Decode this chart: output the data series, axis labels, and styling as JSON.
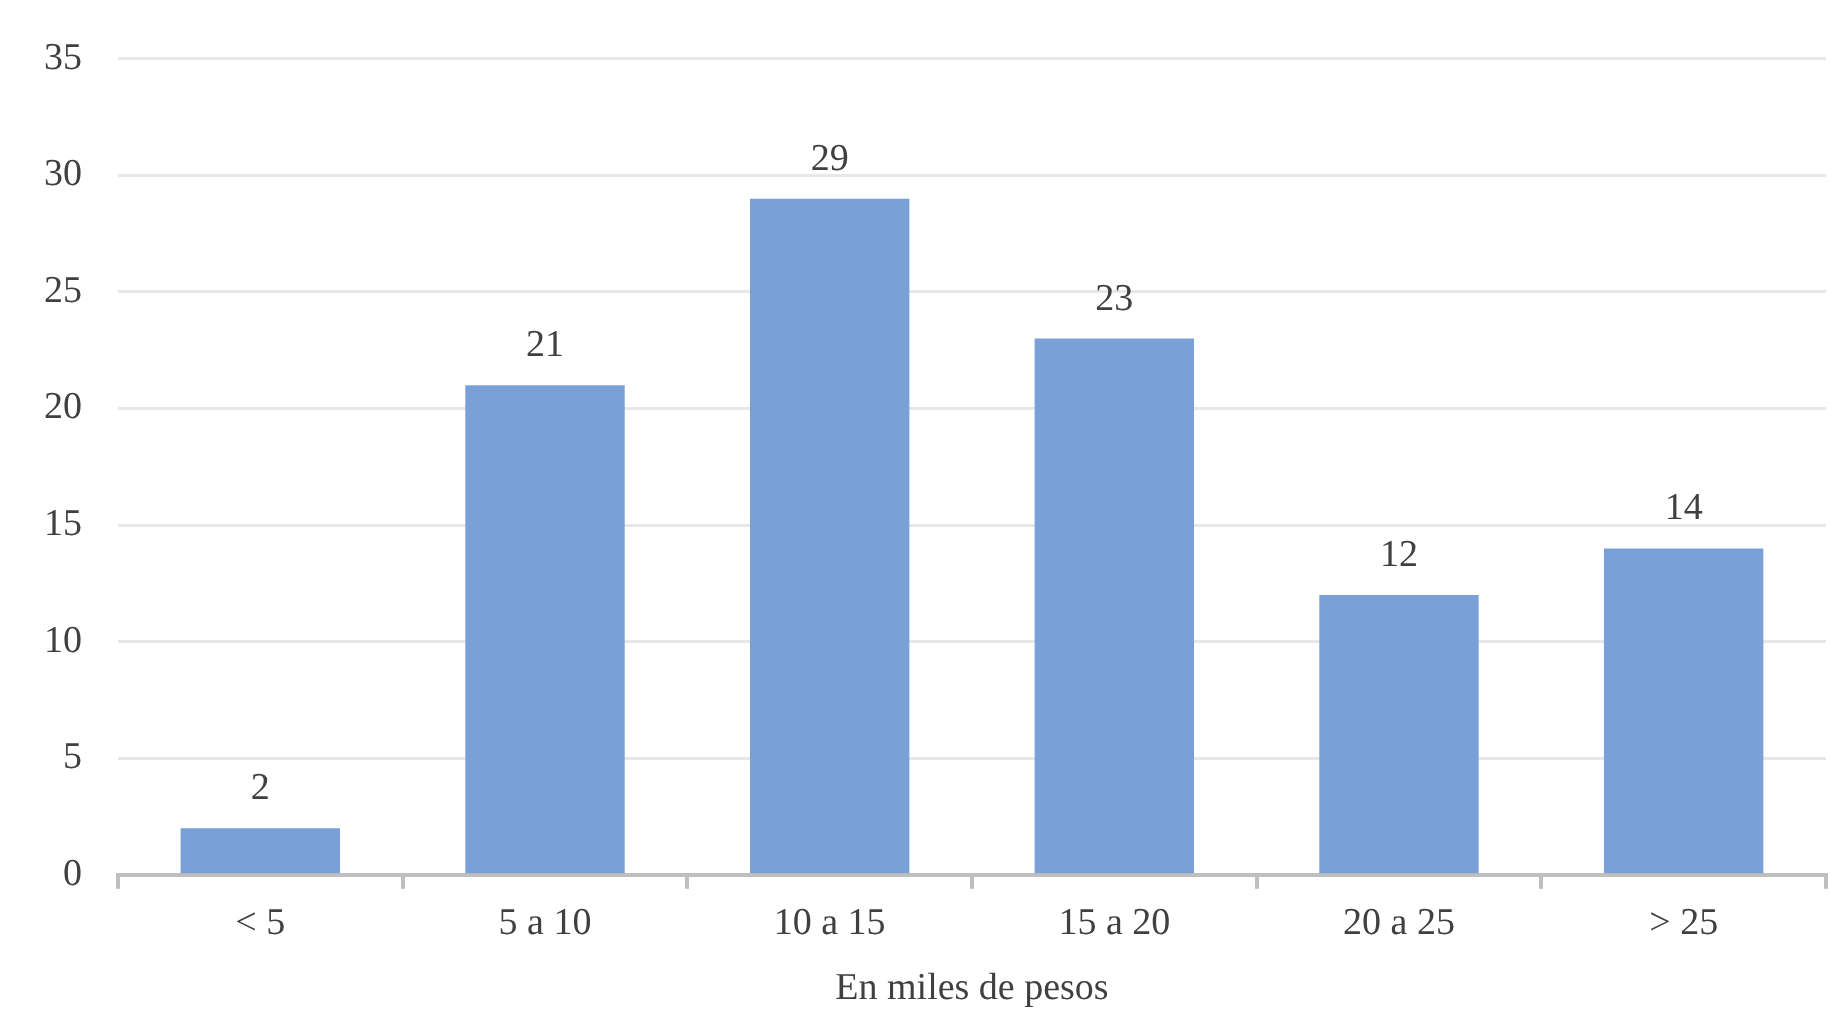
{
  "chart_data": {
    "type": "bar",
    "xlabel": "En miles de pesos",
    "categories": [
      "< 5",
      "5 a 10",
      "10 a 15",
      "15 a 20",
      "20 a 25",
      "> 25"
    ],
    "values": [
      2,
      21,
      29,
      23,
      12,
      14
    ],
    "color": "#7aa0d8",
    "ylim": [
      0,
      35
    ],
    "yticks": [
      0,
      5,
      10,
      15,
      20,
      25,
      30,
      35
    ],
    "grid": "y",
    "data_labels": true,
    "legend": false
  }
}
